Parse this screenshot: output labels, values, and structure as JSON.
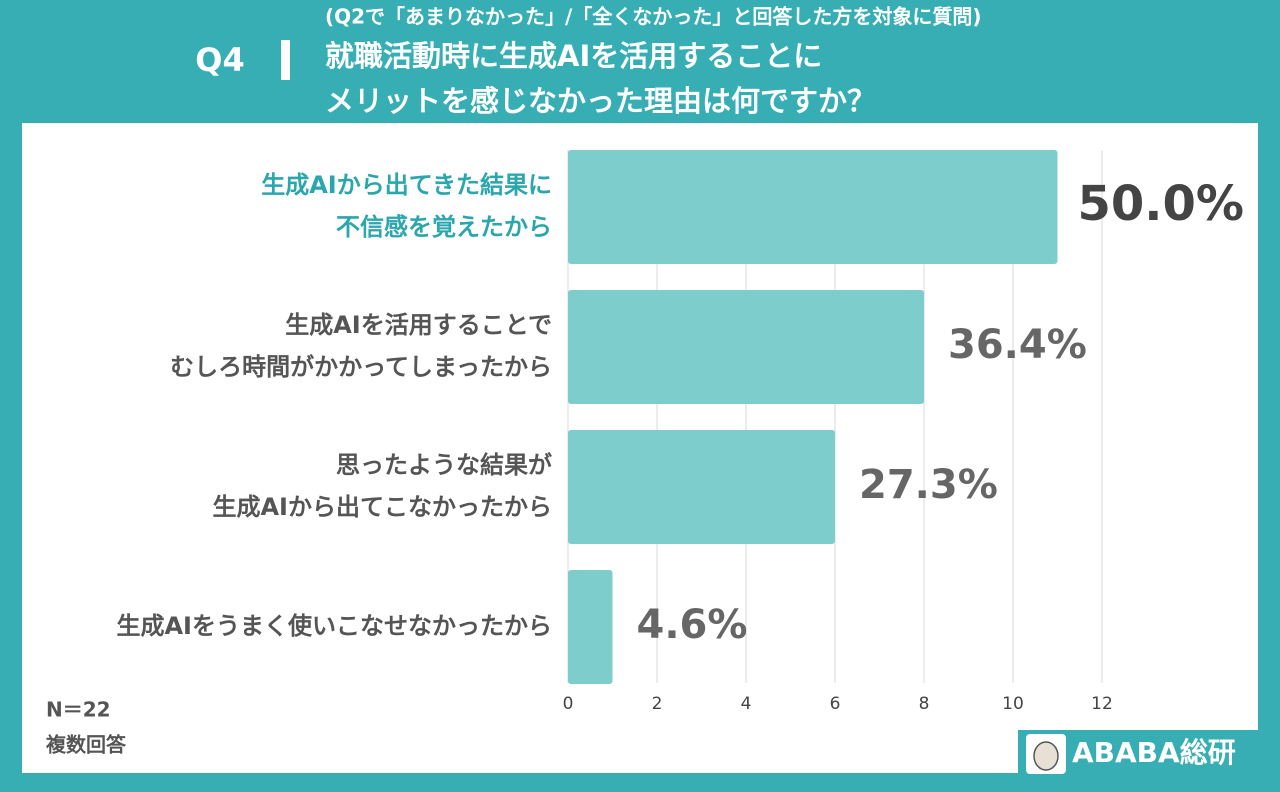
{
  "chart_data": {
    "type": "barh",
    "question_number": "Q4",
    "subtitle": "(Q2で「あまりなかった」/「全くなかった」と回答した方を対象に質問)",
    "title": [
      "就職活動時に生成AIを活用することに",
      "メリットを感じなかった理由は何ですか？"
    ],
    "categories": [
      [
        "生成AIから出てきた結果に",
        "不信感を覚えたから"
      ],
      [
        "生成AIを活用することで",
        "むしろ時間がかかってしまったから"
      ],
      [
        "思ったような結果が",
        "生成AIから出てこなかったから"
      ],
      [
        "生成AIをうまく使いこなせなかったから"
      ]
    ],
    "values": [
      11,
      8,
      6,
      1
    ],
    "value_labels": [
      "50.0%",
      "36.4%",
      "27.3%",
      "4.6%"
    ],
    "color": "#7ecdcd",
    "highlight": 0,
    "highlight_color": "#2aa6ad",
    "xlim": [
      0,
      12
    ],
    "xticks": [
      0,
      2,
      4,
      6,
      8,
      10,
      12
    ],
    "grid": true,
    "notes": [
      "N＝22",
      "複数回答"
    ],
    "logo": "ABABA総研"
  }
}
